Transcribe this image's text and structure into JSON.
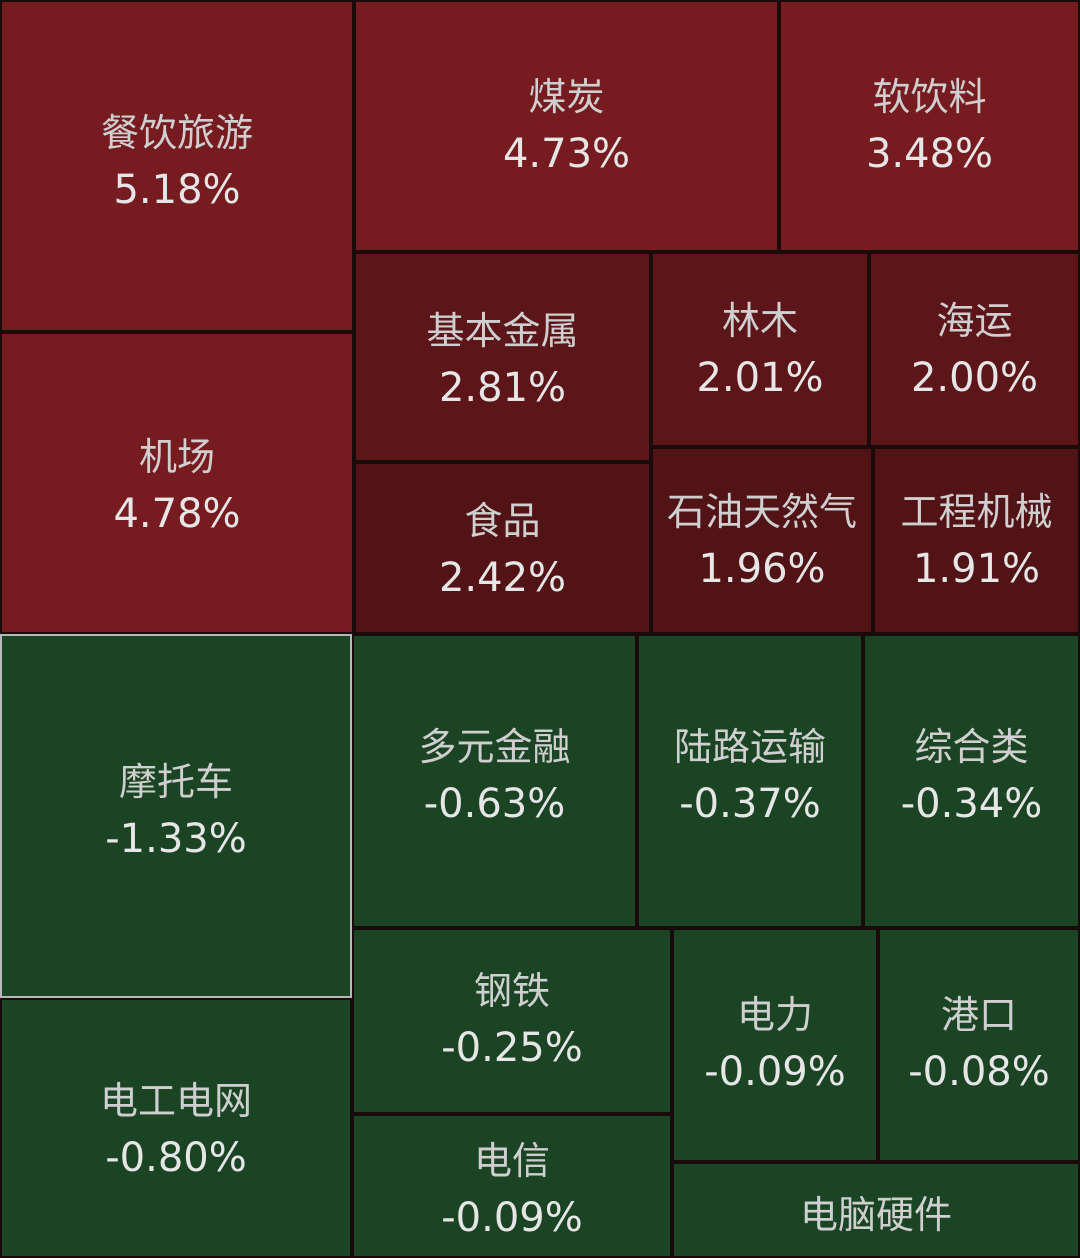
{
  "chart_data": {
    "type": "treemap",
    "colors": {
      "up_strong": "#761c21",
      "up_mid": "#5c1518",
      "up_weak": "#521316",
      "down": "#1b4424",
      "border": "#1a0a0a",
      "selected_border": "#b8b8b8"
    },
    "items": [
      {
        "name": "餐饮旅游",
        "value": "5.18%",
        "change": 5.18
      },
      {
        "name": "煤炭",
        "value": "4.73%",
        "change": 4.73
      },
      {
        "name": "软饮料",
        "value": "3.48%",
        "change": 3.48
      },
      {
        "name": "机场",
        "value": "4.78%",
        "change": 4.78
      },
      {
        "name": "基本金属",
        "value": "2.81%",
        "change": 2.81
      },
      {
        "name": "林木",
        "value": "2.01%",
        "change": 2.01
      },
      {
        "name": "海运",
        "value": "2.00%",
        "change": 2.0
      },
      {
        "name": "食品",
        "value": "2.42%",
        "change": 2.42
      },
      {
        "name": "石油天然气",
        "value": "1.96%",
        "change": 1.96
      },
      {
        "name": "工程机械",
        "value": "1.91%",
        "change": 1.91
      },
      {
        "name": "摩托车",
        "value": "-1.33%",
        "change": -1.33
      },
      {
        "name": "多元金融",
        "value": "-0.63%",
        "change": -0.63
      },
      {
        "name": "陆路运输",
        "value": "-0.37%",
        "change": -0.37
      },
      {
        "name": "综合类",
        "value": "-0.34%",
        "change": -0.34
      },
      {
        "name": "钢铁",
        "value": "-0.25%",
        "change": -0.25
      },
      {
        "name": "电力",
        "value": "-0.09%",
        "change": -0.09
      },
      {
        "name": "港口",
        "value": "-0.08%",
        "change": -0.08
      },
      {
        "name": "电工电网",
        "value": "-0.80%",
        "change": -0.8
      },
      {
        "name": "电信",
        "value": "-0.09%",
        "change": -0.09
      },
      {
        "name": "电脑硬件",
        "value": "",
        "change": null
      }
    ]
  }
}
